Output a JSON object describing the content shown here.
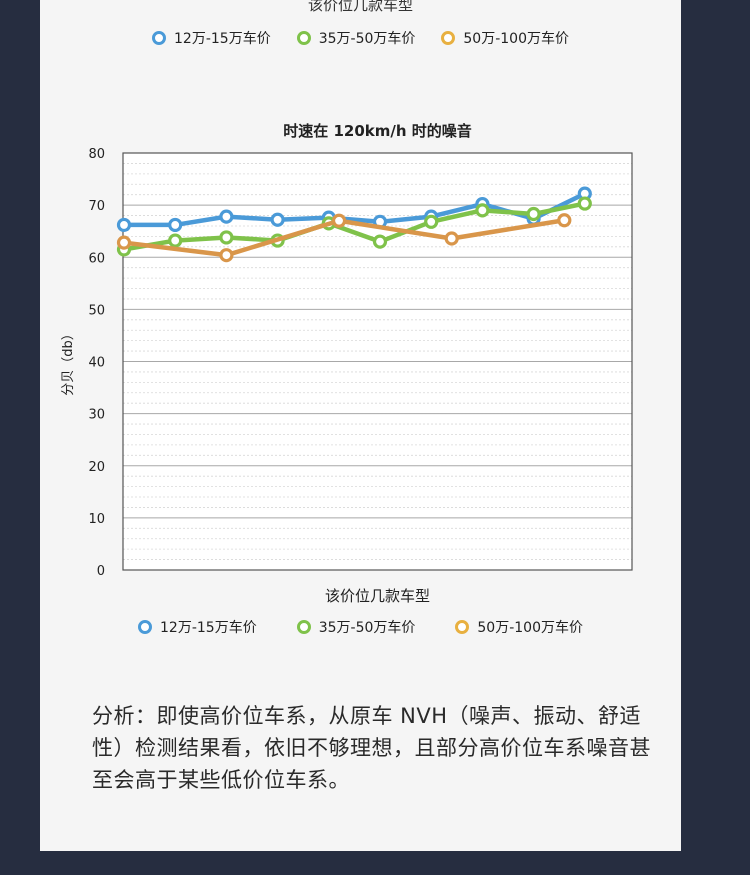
{
  "header_partial_title": "该价位几款车型",
  "legend_top": [
    {
      "label": "12万-15万车价",
      "color": "#4a9ad8"
    },
    {
      "label": "35万-50万车价",
      "color": "#7fc24a"
    },
    {
      "label": "50万-100万车价",
      "color": "#e8b040"
    }
  ],
  "legend_bottom": [
    {
      "label": "12万-15万车价",
      "color": "#4a9ad8"
    },
    {
      "label": "35万-50万车价",
      "color": "#7fc24a"
    },
    {
      "label": "50万-100万车价",
      "color": "#e8b040"
    }
  ],
  "chart_data": {
    "type": "line",
    "title": "时速在 120km/h 时的噪音",
    "xlabel": "该价位几款车型",
    "ylabel": "分贝（db）",
    "ylim": [
      0,
      80
    ],
    "yticks": [
      0,
      10,
      20,
      30,
      40,
      50,
      60,
      70,
      80
    ],
    "grid": true,
    "x_count": 9,
    "series": [
      {
        "name": "12万-15万车价",
        "color": "#4a9ad8",
        "x": [
          0,
          1,
          2,
          3,
          4,
          5,
          6,
          7,
          8,
          9
        ],
        "values": [
          66.2,
          66.2,
          67.8,
          67.2,
          67.6,
          66.8,
          67.8,
          70.2,
          67.4,
          72.2
        ]
      },
      {
        "name": "35万-50万车价",
        "color": "#7fc24a",
        "x": [
          0,
          1,
          2,
          3,
          4,
          5,
          6,
          7,
          8,
          9
        ],
        "values": [
          61.5,
          63.2,
          63.8,
          63.2,
          66.5,
          63.0,
          66.8,
          69.0,
          68.3,
          70.3
        ]
      },
      {
        "name": "50万-100万车价",
        "color": "#d9964a",
        "x": [
          0,
          2,
          4.2,
          6.4,
          8.6
        ],
        "values": [
          62.8,
          60.4,
          67.0,
          63.6,
          67.1
        ]
      }
    ]
  },
  "analysis_text": "分析：即使高价位车系，从原车 NVH（噪声、振动、舒适性）检测结果看，依旧不够理想，且部分高价位车系噪音甚至会高于某些低价位车系。"
}
